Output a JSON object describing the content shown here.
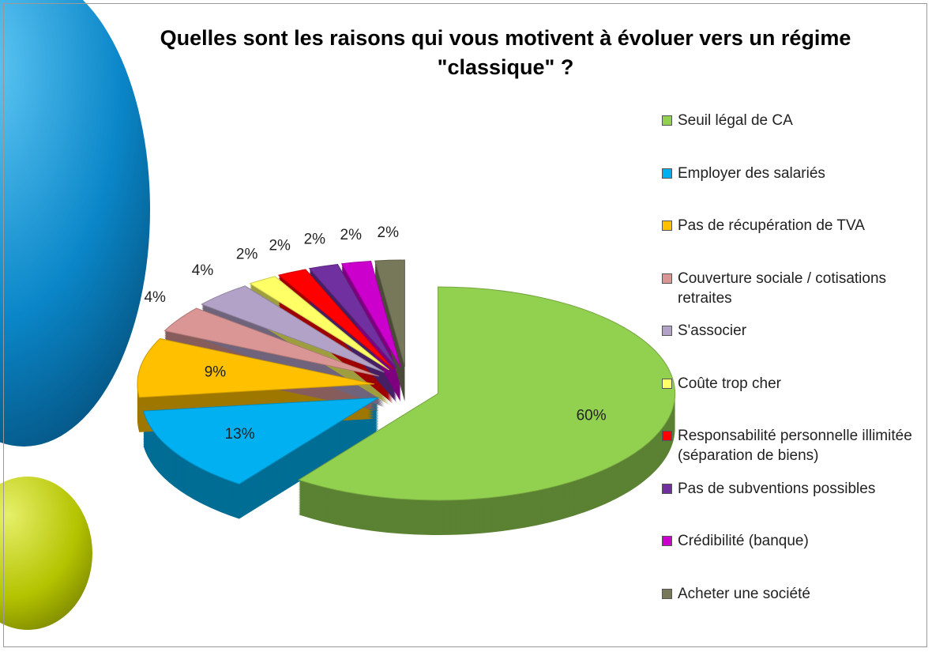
{
  "chart_data": {
    "type": "pie",
    "title": "Quelles sont les raisons qui vous motivent à évoluer vers un régime \"classique\" ?",
    "categories": [
      "Seuil légal de CA",
      "Employer des salariés",
      "Pas de récupération de TVA",
      "Couverture sociale / cotisations retraites",
      "S'associer",
      "Coûte trop cher",
      "Responsabilité personnelle illimitée (séparation de biens)",
      "Pas de subventions possibles",
      "Crédibilité (banque)",
      "Acheter une société"
    ],
    "values": [
      60,
      13,
      9,
      4,
      4,
      2,
      2,
      2,
      2,
      2
    ],
    "value_labels": [
      "60%",
      "13%",
      "9%",
      "4%",
      "4%",
      "2%",
      "2%",
      "2%",
      "2%",
      "2%"
    ],
    "colors": [
      "#92d050",
      "#00b0f0",
      "#ffc000",
      "#d99694",
      "#b3a2c7",
      "#ffff66",
      "#ff0000",
      "#7030a0",
      "#cc00cc",
      "#77775a"
    ],
    "legend": "right"
  }
}
